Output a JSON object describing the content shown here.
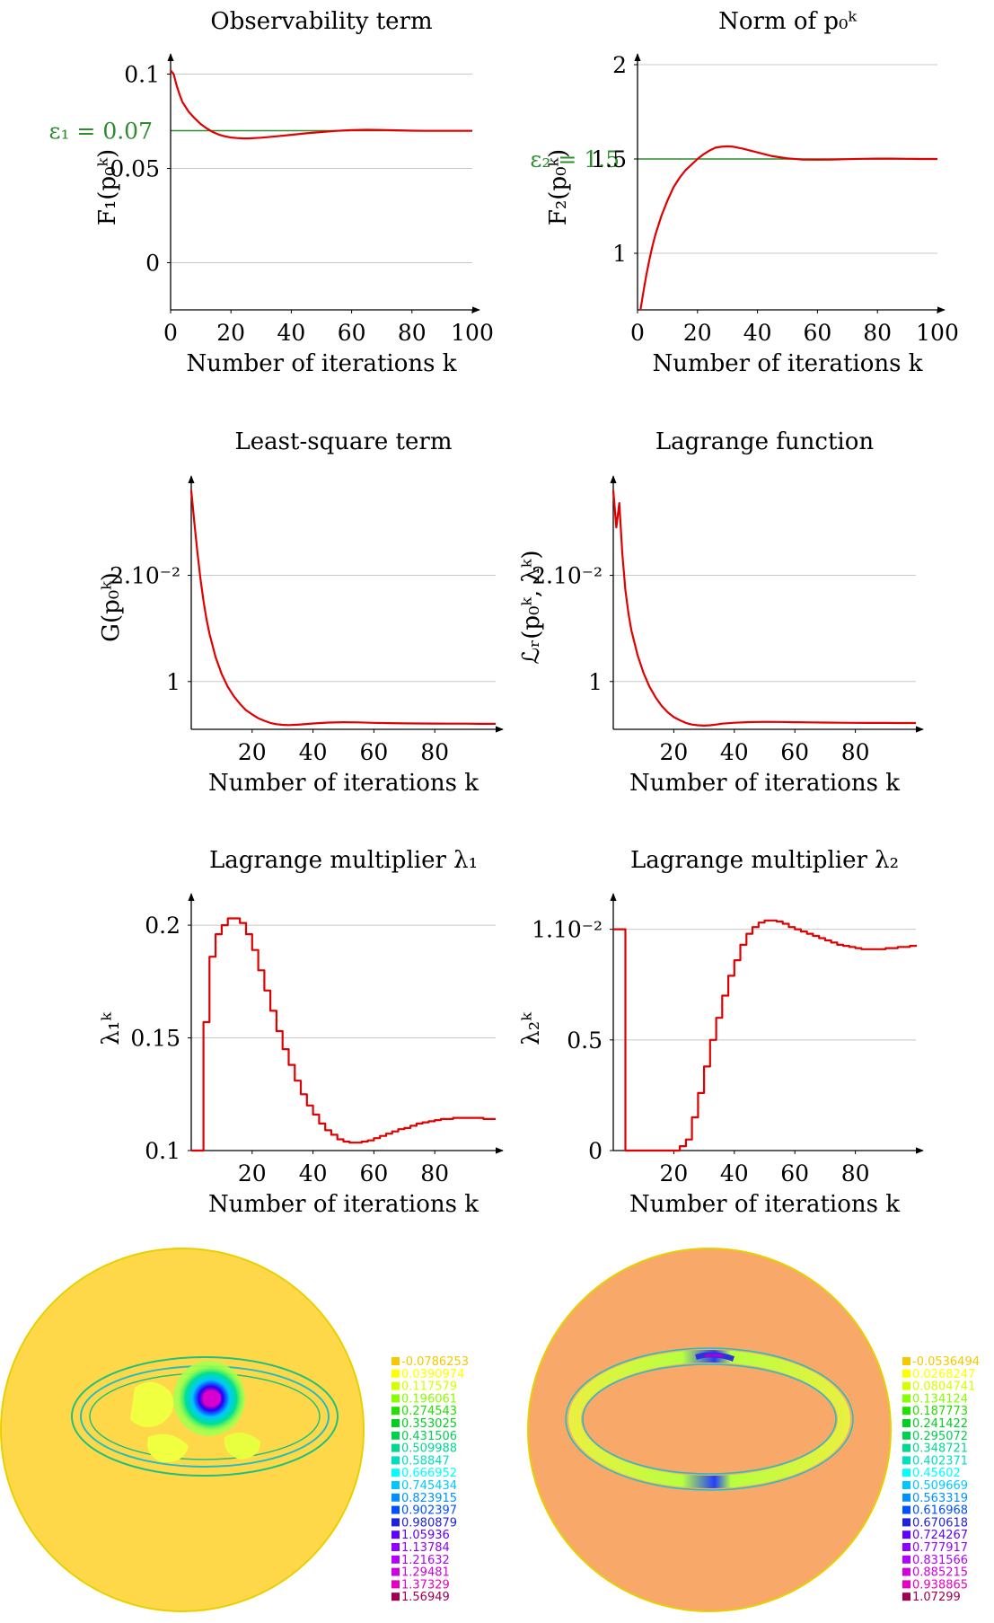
{
  "chart_data": [
    {
      "type": "line",
      "title": "Observability term",
      "xlabel": "Number of iterations k",
      "ylabel": "F₁(p₀ᵏ)",
      "xlim": [
        0,
        100
      ],
      "ylim": [
        -0.025,
        0.105
      ],
      "xticks": [
        "0",
        "20",
        "40",
        "60",
        "80",
        "100"
      ],
      "yticks": [
        "0",
        "0.05",
        "0.1"
      ],
      "ytick_values": [
        0,
        0.05,
        0.1
      ],
      "grid": "horizontal",
      "reference": {
        "label": "ε₁ = 0.07",
        "value": 0.07,
        "color": "#2e8b2e"
      },
      "series": [
        {
          "color": "#e00000",
          "x": [
            0,
            1,
            2,
            3,
            4,
            6,
            8,
            10,
            12,
            14,
            16,
            18,
            20,
            22,
            24,
            26,
            28,
            30,
            35,
            40,
            45,
            50,
            55,
            60,
            65,
            70,
            75,
            80,
            85,
            90,
            95,
            100
          ],
          "y": [
            0.102,
            0.1,
            0.094,
            0.089,
            0.085,
            0.08,
            0.0765,
            0.0735,
            0.0712,
            0.0693,
            0.0679,
            0.067,
            0.0664,
            0.0661,
            0.0659,
            0.0659,
            0.0661,
            0.0663,
            0.067,
            0.0678,
            0.0686,
            0.0693,
            0.0699,
            0.0703,
            0.0705,
            0.0704,
            0.0702,
            0.07,
            0.0699,
            0.0699,
            0.0699,
            0.0699
          ]
        }
      ]
    },
    {
      "type": "line",
      "title": "Norm of p₀ᵏ",
      "xlabel": "Number of iterations k",
      "ylabel": "F₂(p₀ᵏ)",
      "xlim": [
        0,
        100
      ],
      "ylim": [
        0.7,
        2.0
      ],
      "xticks": [
        "0",
        "20",
        "40",
        "60",
        "80",
        "100"
      ],
      "yticks": [
        "1",
        "1.5",
        "2"
      ],
      "ytick_values": [
        1,
        1.5,
        2
      ],
      "grid": "horizontal",
      "reference": {
        "label": "ε₂ = 1.5",
        "value": 1.5,
        "color": "#2e8b2e"
      },
      "series": [
        {
          "color": "#e00000",
          "x": [
            1,
            2,
            3,
            4,
            5,
            6,
            8,
            10,
            12,
            14,
            16,
            18,
            20,
            22,
            24,
            26,
            28,
            30,
            32,
            35,
            40,
            45,
            50,
            55,
            60,
            65,
            70,
            75,
            80,
            85,
            90,
            95,
            100
          ],
          "y": [
            0.7,
            0.8,
            0.89,
            0.97,
            1.04,
            1.1,
            1.2,
            1.28,
            1.35,
            1.4,
            1.44,
            1.47,
            1.5,
            1.525,
            1.545,
            1.56,
            1.565,
            1.567,
            1.565,
            1.555,
            1.535,
            1.515,
            1.503,
            1.497,
            1.496,
            1.497,
            1.499,
            1.501,
            1.502,
            1.502,
            1.501,
            1.5,
            1.5
          ]
        }
      ]
    },
    {
      "type": "line",
      "title": "Least-square term",
      "xlabel": "Number of iterations k",
      "ylabel": "G(p₀ᵏ)",
      "xlim": [
        0,
        100
      ],
      "ylim": [
        0.55,
        2.85
      ],
      "xticks": [
        "20",
        "40",
        "60",
        "80"
      ],
      "yticks": [
        "1",
        "2.10⁻²"
      ],
      "ytick_values": [
        1,
        2
      ],
      "grid": "horizontal",
      "series": [
        {
          "color": "#e00000",
          "x": [
            0,
            1,
            2,
            3,
            4,
            5,
            6,
            8,
            10,
            12,
            14,
            16,
            18,
            20,
            22,
            24,
            26,
            28,
            30,
            32,
            34,
            36,
            40,
            45,
            50,
            55,
            60,
            65,
            70,
            75,
            80,
            85,
            90,
            95,
            100
          ],
          "y": [
            2.8,
            2.5,
            2.22,
            1.97,
            1.76,
            1.59,
            1.45,
            1.23,
            1.07,
            0.95,
            0.86,
            0.79,
            0.73,
            0.69,
            0.655,
            0.63,
            0.61,
            0.598,
            0.592,
            0.59,
            0.592,
            0.596,
            0.605,
            0.613,
            0.617,
            0.615,
            0.611,
            0.608,
            0.606,
            0.605,
            0.604,
            0.603,
            0.603,
            0.602,
            0.602
          ]
        }
      ]
    },
    {
      "type": "line",
      "title": "Lagrange function",
      "xlabel": "Number of iterations k",
      "ylabel": "ℒᵣ(p₀ᵏ, λᵏ)",
      "xlim": [
        0,
        100
      ],
      "ylim": [
        0.55,
        2.85
      ],
      "xticks": [
        "20",
        "40",
        "60",
        "80"
      ],
      "yticks": [
        "1",
        "2.10⁻²"
      ],
      "ytick_values": [
        1,
        2
      ],
      "grid": "horizontal",
      "series": [
        {
          "color": "#e00000",
          "x": [
            0,
            1,
            2,
            3,
            4,
            5,
            6,
            8,
            10,
            12,
            14,
            16,
            18,
            20,
            22,
            24,
            26,
            28,
            30,
            32,
            34,
            36,
            40,
            45,
            50,
            55,
            60,
            65,
            70,
            75,
            80,
            85,
            90,
            95,
            100
          ],
          "y": [
            2.8,
            2.45,
            2.68,
            2.2,
            1.86,
            1.64,
            1.48,
            1.25,
            1.08,
            0.95,
            0.85,
            0.77,
            0.71,
            0.665,
            0.635,
            0.61,
            0.595,
            0.588,
            0.585,
            0.588,
            0.595,
            0.603,
            0.612,
            0.618,
            0.62,
            0.619,
            0.617,
            0.615,
            0.613,
            0.612,
            0.611,
            0.61,
            0.61,
            0.609,
            0.609
          ]
        }
      ]
    },
    {
      "type": "line",
      "title": "Lagrange multiplier λ₁",
      "xlabel": "Number of iterations k",
      "ylabel": "λ₁ᵏ",
      "xlim": [
        0,
        100
      ],
      "ylim": [
        0.1,
        0.208
      ],
      "xticks": [
        "20",
        "40",
        "60",
        "80"
      ],
      "yticks": [
        "0.1",
        "0.15",
        "0.2"
      ],
      "ytick_values": [
        0.1,
        0.15,
        0.2
      ],
      "grid": "horizontal",
      "step": true,
      "series": [
        {
          "color": "#e00000",
          "x": [
            0,
            2,
            4,
            6,
            8,
            10,
            12,
            14,
            16,
            18,
            20,
            22,
            24,
            26,
            28,
            30,
            32,
            34,
            36,
            38,
            40,
            42,
            44,
            46,
            48,
            50,
            52,
            54,
            56,
            58,
            60,
            62,
            64,
            66,
            68,
            70,
            72,
            74,
            76,
            78,
            80,
            82,
            84,
            86,
            88,
            90,
            92,
            94,
            96,
            98,
            100
          ],
          "y": [
            0.1,
            0.1,
            0.157,
            0.186,
            0.196,
            0.2,
            0.203,
            0.203,
            0.201,
            0.196,
            0.189,
            0.18,
            0.171,
            0.162,
            0.153,
            0.145,
            0.138,
            0.131,
            0.125,
            0.12,
            0.116,
            0.112,
            0.109,
            0.107,
            0.105,
            0.104,
            0.1035,
            0.1035,
            0.104,
            0.1045,
            0.1055,
            0.1065,
            0.1075,
            0.1085,
            0.1095,
            0.11,
            0.111,
            0.112,
            0.1125,
            0.113,
            0.1135,
            0.114,
            0.114,
            0.1145,
            0.1145,
            0.1145,
            0.1145,
            0.1145,
            0.114,
            0.114,
            0.114
          ]
        }
      ]
    },
    {
      "type": "line",
      "title": "Lagrange multiplier λ₂",
      "xlabel": "Number of iterations k",
      "ylabel": "λ₂ᵏ",
      "xlim": [
        0,
        100
      ],
      "ylim": [
        0,
        1.1
      ],
      "xticks": [
        "20",
        "40",
        "60",
        "80"
      ],
      "yticks": [
        "0",
        "0.5",
        "1.10⁻²"
      ],
      "ytick_values": [
        0,
        0.5,
        1.0
      ],
      "grid": "horizontal",
      "step": true,
      "series": [
        {
          "color": "#e00000",
          "x": [
            0,
            2,
            3,
            4,
            6,
            8,
            10,
            12,
            14,
            16,
            18,
            20,
            22,
            24,
            26,
            28,
            30,
            32,
            34,
            36,
            38,
            40,
            42,
            44,
            46,
            48,
            50,
            52,
            54,
            56,
            58,
            60,
            62,
            64,
            66,
            68,
            70,
            72,
            74,
            76,
            78,
            80,
            82,
            84,
            86,
            88,
            90,
            92,
            94,
            96,
            98,
            100
          ],
          "y": [
            1.0,
            1.0,
            1.0,
            0.0,
            0.0,
            0.0,
            0.0,
            0.0,
            0.0,
            0.0,
            0.0,
            0.0,
            0.02,
            0.05,
            0.15,
            0.26,
            0.38,
            0.5,
            0.6,
            0.7,
            0.79,
            0.86,
            0.93,
            0.98,
            1.01,
            1.03,
            1.04,
            1.04,
            1.035,
            1.025,
            1.01,
            1.0,
            0.99,
            0.98,
            0.97,
            0.96,
            0.95,
            0.94,
            0.93,
            0.925,
            0.92,
            0.915,
            0.91,
            0.91,
            0.91,
            0.91,
            0.915,
            0.915,
            0.92,
            0.92,
            0.925,
            0.93
          ]
        }
      ]
    },
    {
      "type": "heatmap",
      "legend_values": [
        "-0.0786253",
        "0.0390974",
        "0.117579",
        "0.196061",
        "0.274543",
        "0.353025",
        "0.431506",
        "0.509988",
        "0.58847",
        "0.666952",
        "0.745434",
        "0.823915",
        "0.902397",
        "0.980879",
        "1.05936",
        "1.13784",
        "1.21632",
        "1.29481",
        "1.37329",
        "1.56949"
      ],
      "legend_colors": [
        "#f5c800",
        "#ffff00",
        "#d4ff00",
        "#88ff00",
        "#22e000",
        "#00d020",
        "#00d050",
        "#00d890",
        "#00e0c0",
        "#00ffff",
        "#00c8ff",
        "#0090ff",
        "#0050ff",
        "#2020e0",
        "#6000ff",
        "#9000ff",
        "#b000ff",
        "#d000e0",
        "#e800c0",
        "#a00050"
      ]
    },
    {
      "type": "heatmap",
      "legend_values": [
        "-0.0536494",
        "0.0268247",
        "0.0804741",
        "0.134124",
        "0.187773",
        "0.241422",
        "0.295072",
        "0.348721",
        "0.402371",
        "0.45602",
        "0.509669",
        "0.563319",
        "0.616968",
        "0.670618",
        "0.724267",
        "0.777917",
        "0.831566",
        "0.885215",
        "0.938865",
        "1.07299"
      ],
      "legend_colors": [
        "#f5c800",
        "#ffff00",
        "#d4ff00",
        "#88ff00",
        "#22e000",
        "#00d020",
        "#00d050",
        "#00d890",
        "#00e0c0",
        "#00ffff",
        "#00c8ff",
        "#0090ff",
        "#0050ff",
        "#2020e0",
        "#6000ff",
        "#9000ff",
        "#b000ff",
        "#d000e0",
        "#e800c0",
        "#a00050"
      ]
    }
  ]
}
